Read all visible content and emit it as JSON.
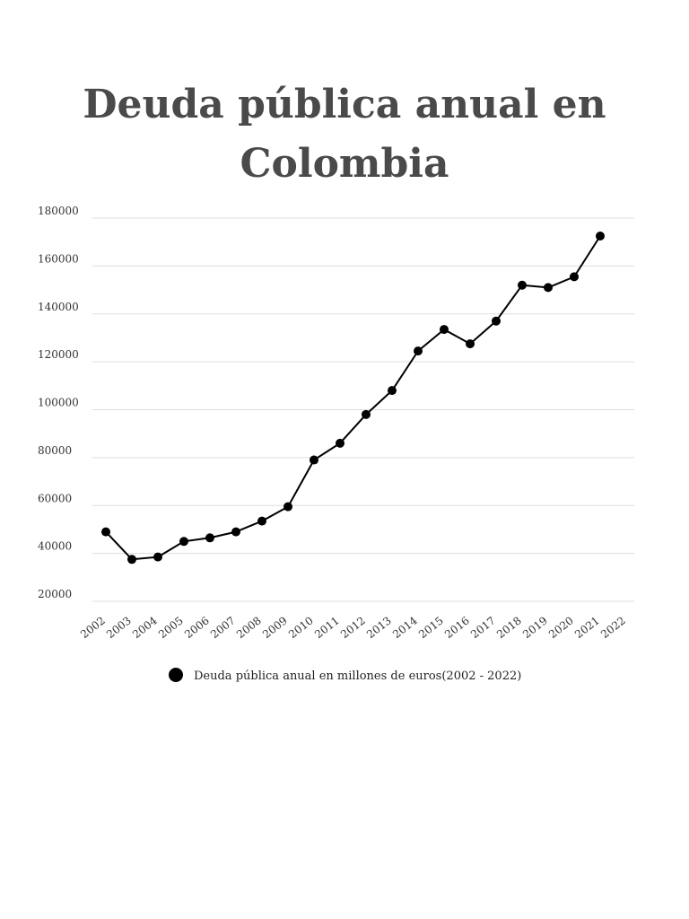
{
  "chart_data": {
    "type": "line",
    "title": [
      "Deuda pública anual en",
      "Colombia"
    ],
    "xlabel": "",
    "ylabel": "",
    "x": [
      "2002",
      "2003",
      "2004",
      "2005",
      "2006",
      "2007",
      "2008",
      "2009",
      "2010",
      "2011",
      "2012",
      "2013",
      "2014",
      "2015",
      "2016",
      "2017",
      "2018",
      "2019",
      "2020",
      "2021",
      "2022"
    ],
    "series": [
      {
        "name": "Deuda pública anual en millones de euros(2002 - 2022)",
        "values": [
          49000,
          37500,
          38500,
          45000,
          46500,
          49000,
          53500,
          59500,
          79000,
          86000,
          98000,
          108000,
          124500,
          133500,
          127500,
          137000,
          152000,
          151000,
          155500,
          172500,
          null
        ]
      }
    ],
    "ylim": [
      20000,
      180000
    ],
    "yticks": [
      20000,
      40000,
      60000,
      80000,
      100000,
      120000,
      140000,
      160000,
      180000
    ],
    "ytick_labels": [
      "20000",
      "40000",
      "60000",
      "80000",
      "100000",
      "120000",
      "140000",
      "160000",
      "180000"
    ],
    "grid": true,
    "legend_position": "bottom-center",
    "colors": {
      "line": "#000000",
      "grid": "#dddddd",
      "title": "#4a4a4a"
    }
  }
}
